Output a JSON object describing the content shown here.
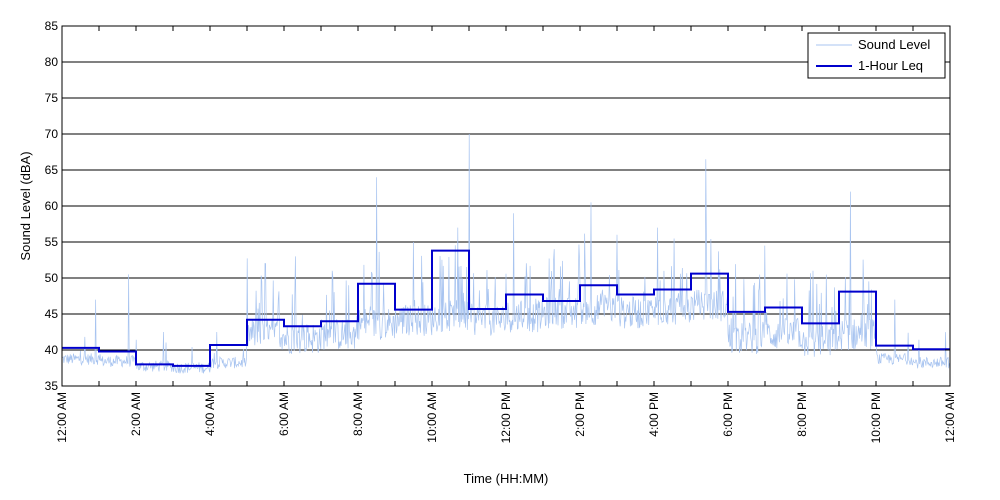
{
  "chart_data": {
    "type": "line",
    "xlabel": "Time (HH:MM)",
    "ylabel": "Sound Level (dBA)",
    "ylim": [
      35,
      85
    ],
    "yticks": [
      35,
      40,
      45,
      50,
      55,
      60,
      65,
      70,
      75,
      80,
      85
    ],
    "xlim_hours": [
      0,
      24
    ],
    "xticks": [
      {
        "hour": 0,
        "label": "12:00 AM"
      },
      {
        "hour": 2,
        "label": "2:00 AM"
      },
      {
        "hour": 4,
        "label": "4:00 AM"
      },
      {
        "hour": 6,
        "label": "6:00 AM"
      },
      {
        "hour": 8,
        "label": "8:00 AM"
      },
      {
        "hour": 10,
        "label": "10:00 AM"
      },
      {
        "hour": 12,
        "label": "12:00 PM"
      },
      {
        "hour": 14,
        "label": "2:00 PM"
      },
      {
        "hour": 16,
        "label": "4:00 PM"
      },
      {
        "hour": 18,
        "label": "6:00 PM"
      },
      {
        "hour": 20,
        "label": "8:00 PM"
      },
      {
        "hour": 22,
        "label": "10:00 PM"
      },
      {
        "hour": 24,
        "label": "12:00 AM"
      }
    ],
    "grid": "horizontal",
    "legend_position": "top-right",
    "series": [
      {
        "name": "Sound Level",
        "color": "#a8c4f0",
        "style": "thin-line",
        "hourly_typical": [
          38.5,
          38.2,
          37.5,
          37.3,
          38.0,
          41.5,
          41.0,
          41.5,
          43.0,
          43.5,
          44.0,
          43.5,
          44.0,
          44.5,
          45.0,
          44.5,
          45.0,
          45.5,
          41.0,
          41.5,
          40.5,
          41.5,
          38.5,
          38.0
        ],
        "peaks": [
          {
            "hour": 0.9,
            "value": 47
          },
          {
            "hour": 1.8,
            "value": 50.5
          },
          {
            "hour": 2.75,
            "value": 42.5
          },
          {
            "hour": 5.5,
            "value": 52
          },
          {
            "hour": 6.3,
            "value": 53
          },
          {
            "hour": 7.3,
            "value": 51
          },
          {
            "hour": 8.5,
            "value": 64
          },
          {
            "hour": 9.5,
            "value": 55
          },
          {
            "hour": 10.7,
            "value": 57
          },
          {
            "hour": 11.0,
            "value": 70
          },
          {
            "hour": 12.2,
            "value": 59
          },
          {
            "hour": 13.3,
            "value": 54
          },
          {
            "hour": 14.3,
            "value": 60.5
          },
          {
            "hour": 15.0,
            "value": 56
          },
          {
            "hour": 16.1,
            "value": 57
          },
          {
            "hour": 17.4,
            "value": 66.5
          },
          {
            "hour": 19.0,
            "value": 54.5
          },
          {
            "hour": 20.3,
            "value": 51
          },
          {
            "hour": 21.3,
            "value": 62
          },
          {
            "hour": 22.5,
            "value": 47
          }
        ]
      },
      {
        "name": "1-Hour Leq",
        "color": "#0000cc",
        "style": "step",
        "hours": [
          0,
          1,
          2,
          3,
          4,
          5,
          6,
          7,
          8,
          9,
          10,
          11,
          12,
          13,
          14,
          15,
          16,
          17,
          18,
          19,
          20,
          21,
          22,
          23
        ],
        "values": [
          40.3,
          39.8,
          38.0,
          37.8,
          40.7,
          44.2,
          43.3,
          44.0,
          49.2,
          45.6,
          53.8,
          45.7,
          47.7,
          46.8,
          49.0,
          47.7,
          48.4,
          50.6,
          45.3,
          45.9,
          43.7,
          48.1,
          40.6,
          40.1
        ]
      }
    ]
  }
}
